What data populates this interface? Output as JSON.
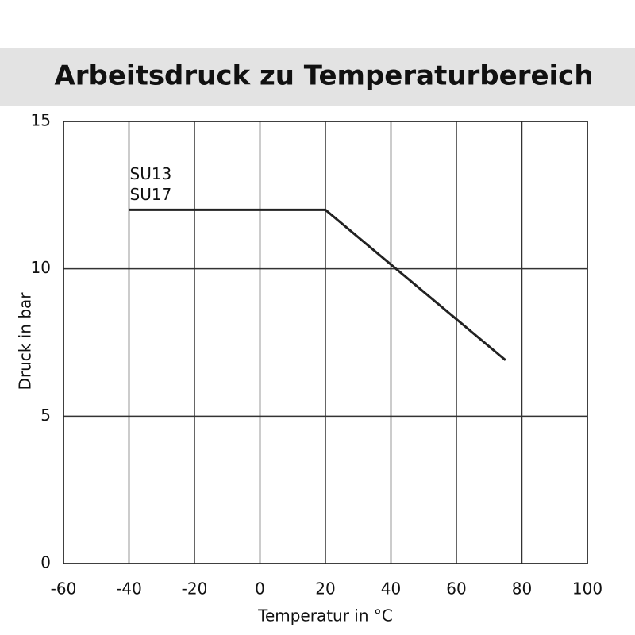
{
  "chart_data": {
    "type": "line",
    "title": "Arbeitsdruck zu Temperaturbereich",
    "xlabel": "Temperatur in °C",
    "ylabel": "Druck in bar",
    "annotations": [
      "SU13",
      "SU17"
    ],
    "x": [
      -40,
      20,
      75
    ],
    "series": [
      {
        "color": "#222222",
        "values": [
          12,
          12,
          6.9
        ]
      }
    ],
    "xlim": [
      -60,
      100
    ],
    "xticks": [
      -60,
      -40,
      -20,
      0,
      20,
      40,
      60,
      80,
      100
    ],
    "ylim": [
      0,
      15
    ],
    "yticks": [
      0,
      5,
      10,
      15
    ],
    "grid": true
  }
}
